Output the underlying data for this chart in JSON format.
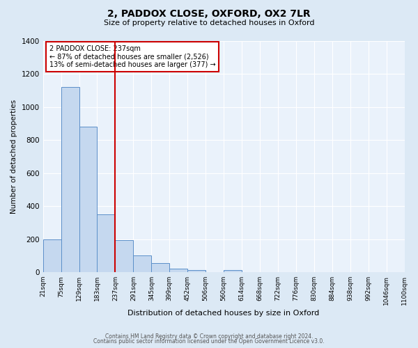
{
  "title": "2, PADDOX CLOSE, OXFORD, OX2 7LR",
  "subtitle": "Size of property relative to detached houses in Oxford",
  "xlabel": "Distribution of detached houses by size in Oxford",
  "ylabel": "Number of detached properties",
  "bin_labels": [
    "21sqm",
    "75sqm",
    "129sqm",
    "183sqm",
    "237sqm",
    "291sqm",
    "345sqm",
    "399sqm",
    "452sqm",
    "506sqm",
    "560sqm",
    "614sqm",
    "668sqm",
    "722sqm",
    "776sqm",
    "830sqm",
    "884sqm",
    "938sqm",
    "992sqm",
    "1046sqm",
    "1100sqm"
  ],
  "bar_values": [
    200,
    1120,
    880,
    350,
    195,
    100,
    55,
    22,
    15,
    0,
    12,
    0,
    0,
    0,
    0,
    0,
    0,
    0,
    0,
    0
  ],
  "bar_color": "#c5d8ef",
  "bar_edge_color": "#5b8fc9",
  "red_line_index": 4,
  "annotation_title": "2 PADDOX CLOSE: 237sqm",
  "annotation_line1": "← 87% of detached houses are smaller (2,526)",
  "annotation_line2": "13% of semi-detached houses are larger (377) →",
  "annotation_box_color": "#ffffff",
  "annotation_border_color": "#cc0000",
  "red_line_color": "#cc0000",
  "ylim": [
    0,
    1400
  ],
  "yticks": [
    0,
    200,
    400,
    600,
    800,
    1000,
    1200,
    1400
  ],
  "footer_line1": "Contains HM Land Registry data © Crown copyright and database right 2024.",
  "footer_line2": "Contains public sector information licensed under the Open Government Licence v3.0.",
  "bg_color": "#dce9f5",
  "plot_bg_color": "#eaf2fb"
}
